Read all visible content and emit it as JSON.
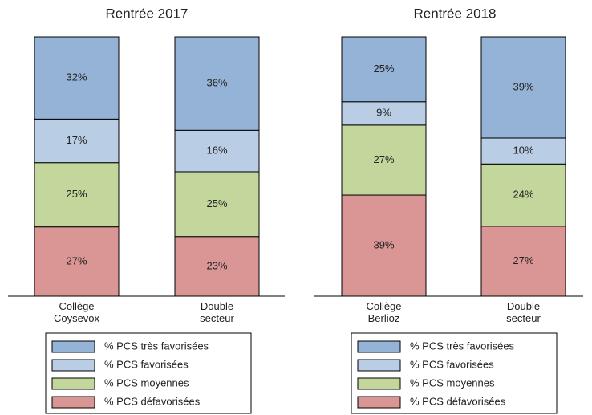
{
  "chart_data": [
    {
      "type": "stacked_bar_percent",
      "title": "Rentrée 2017",
      "categories": [
        "Collège\nCoysevox",
        "Double\nsecteur"
      ],
      "series": [
        {
          "name": "% PCS défavorisées",
          "color": "#d99694",
          "values": [
            27,
            23
          ],
          "value_labels": [
            "27%",
            "23%"
          ]
        },
        {
          "name": "% PCS moyennes",
          "color": "#c3d69b",
          "values": [
            25,
            25
          ],
          "value_labels": [
            "25%",
            "25%"
          ]
        },
        {
          "name": "% PCS favorisées",
          "color": "#b9cde5",
          "values": [
            17,
            16
          ],
          "value_labels": [
            "17%",
            "16%"
          ]
        },
        {
          "name": "% PCS très favorisées",
          "color": "#95b3d7",
          "values": [
            32,
            36
          ],
          "value_labels": [
            "32%",
            "36%"
          ]
        }
      ],
      "legend": "bottom"
    },
    {
      "type": "stacked_bar_percent",
      "title": "Rentrée 2018",
      "categories": [
        "Collège\nBerlioz",
        "Double\nsecteur"
      ],
      "series": [
        {
          "name": "% PCS défavorisées",
          "color": "#d99694",
          "values": [
            39,
            27
          ],
          "value_labels": [
            "39%",
            "27%"
          ]
        },
        {
          "name": "% PCS moyennes",
          "color": "#c3d69b",
          "values": [
            27,
            24
          ],
          "value_labels": [
            "27%",
            "24%"
          ]
        },
        {
          "name": "% PCS favorisées",
          "color": "#b9cde5",
          "values": [
            9,
            10
          ],
          "value_labels": [
            "9%",
            "10%"
          ]
        },
        {
          "name": "% PCS très favorisées",
          "color": "#95b3d7",
          "values": [
            25,
            39
          ],
          "value_labels": [
            "25%",
            "39%"
          ]
        }
      ],
      "legend": "bottom"
    }
  ]
}
